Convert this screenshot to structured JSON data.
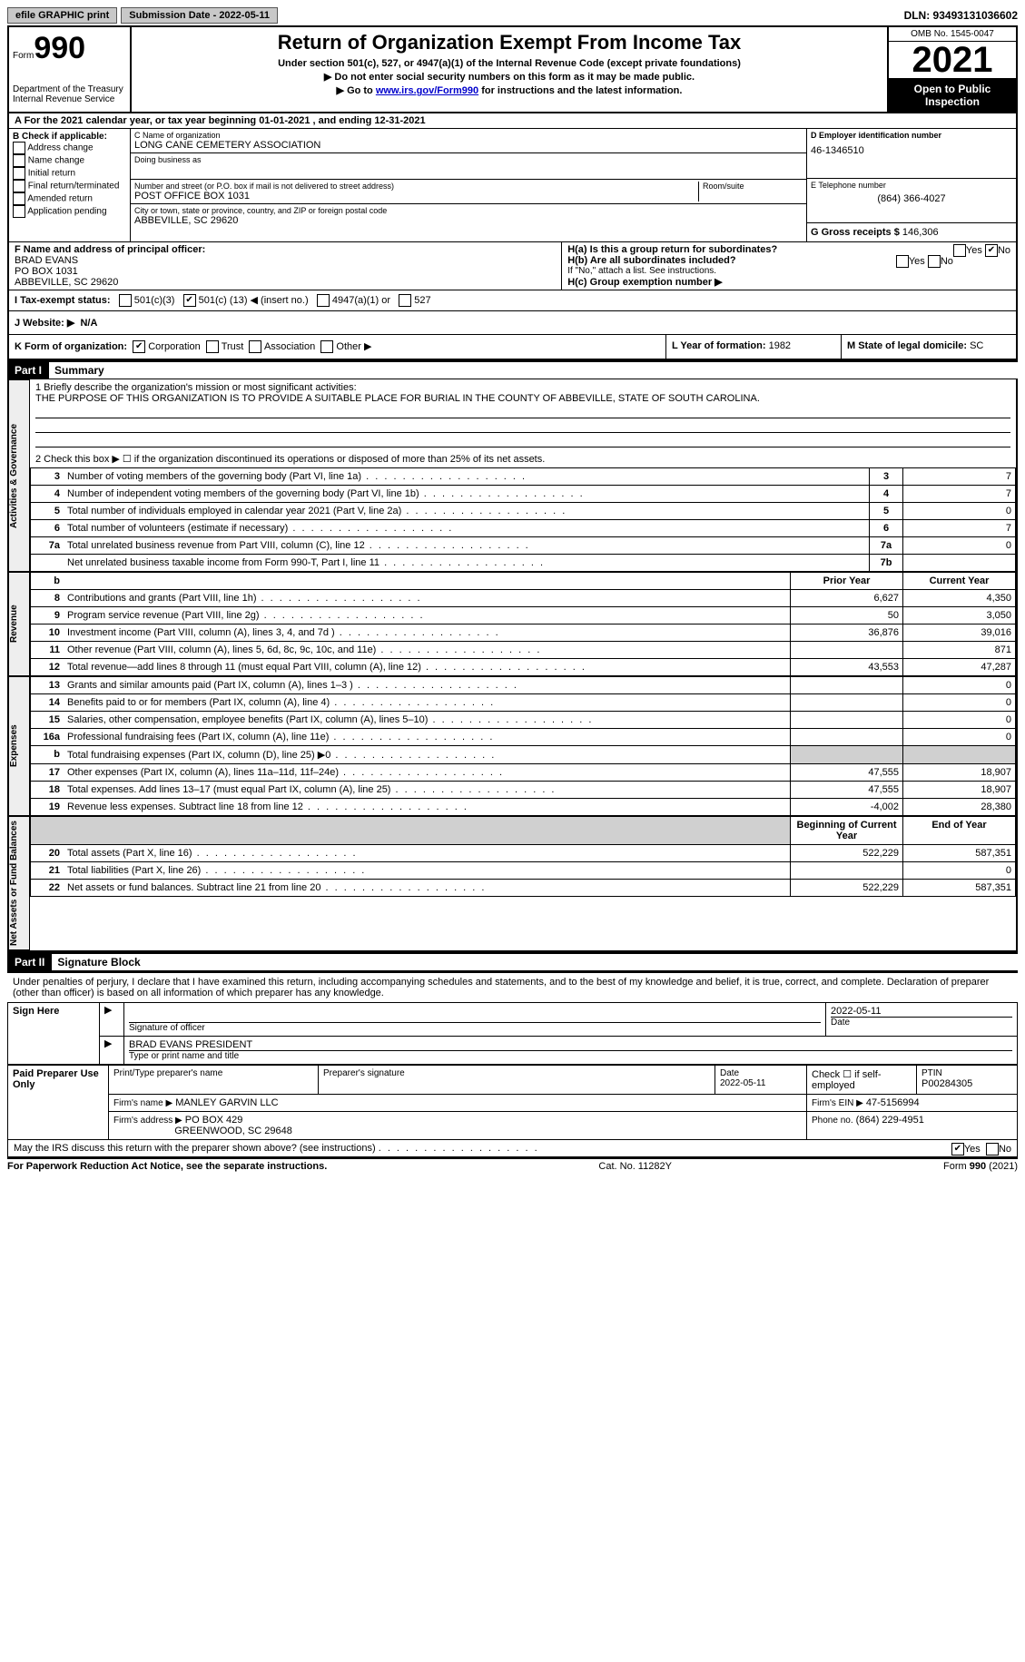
{
  "topbar": {
    "efile": "efile GRAPHIC print",
    "submission_label": "Submission Date - 2022-05-11",
    "dln": "DLN: 93493131036602"
  },
  "header": {
    "form_word": "Form",
    "form_num": "990",
    "dept": "Department of the Treasury",
    "irs": "Internal Revenue Service",
    "title": "Return of Organization Exempt From Income Tax",
    "sub": "Under section 501(c), 527, or 4947(a)(1) of the Internal Revenue Code (except private foundations)",
    "note1": "▶ Do not enter social security numbers on this form as it may be made public.",
    "note2_pre": "▶ Go to ",
    "note2_link": "www.irs.gov/Form990",
    "note2_post": " for instructions and the latest information.",
    "omb": "OMB No. 1545-0047",
    "year": "2021",
    "open": "Open to Public Inspection"
  },
  "line_a": "A For the 2021 calendar year, or tax year beginning 01-01-2021    , and ending 12-31-2021",
  "col_b": {
    "label": "B Check if applicable:",
    "items": [
      "Address change",
      "Name change",
      "Initial return",
      "Final return/terminated",
      "Amended return",
      "Application pending"
    ]
  },
  "col_c": {
    "name_lbl": "C Name of organization",
    "name": "LONG CANE CEMETERY ASSOCIATION",
    "dba_lbl": "Doing business as",
    "dba": "",
    "street_lbl": "Number and street (or P.O. box if mail is not delivered to street address)",
    "street": "POST OFFICE BOX 1031",
    "room_lbl": "Room/suite",
    "city_lbl": "City or town, state or province, country, and ZIP or foreign postal code",
    "city": "ABBEVILLE, SC  29620"
  },
  "col_d": {
    "ein_lbl": "D Employer identification number",
    "ein": "46-1346510",
    "phone_lbl": "E Telephone number",
    "phone": "(864) 366-4027",
    "gross_lbl": "G Gross receipts $",
    "gross": "146,306"
  },
  "section_f": {
    "lbl": "F Name and address of principal officer:",
    "name": "BRAD EVANS",
    "addr1": "PO BOX 1031",
    "addr2": "ABBEVILLE, SC  29620"
  },
  "section_h": {
    "ha": "H(a)  Is this a group return for subordinates?",
    "ha_yes": "Yes",
    "ha_no": "No",
    "hb": "H(b)  Are all subordinates included?",
    "hb_note": "If \"No,\" attach a list. See instructions.",
    "hc": "H(c)  Group exemption number ▶"
  },
  "status": {
    "lbl": "I   Tax-exempt status:",
    "c3": "501(c)(3)",
    "c_pre": "501(c) (",
    "c_num": "13",
    "c_post": ") ◀ (insert no.)",
    "a1": "4947(a)(1) or",
    "s527": "527"
  },
  "website": {
    "lbl": "J   Website: ▶",
    "val": "N/A"
  },
  "k_row": {
    "lbl": "K Form of organization:",
    "corp": "Corporation",
    "trust": "Trust",
    "assoc": "Association",
    "other": "Other ▶",
    "l_lbl": "L Year of formation:",
    "l_val": "1982",
    "m_lbl": "M State of legal domicile:",
    "m_val": "SC"
  },
  "part1": {
    "hdr": "Part I",
    "title": "Summary",
    "q1_lbl": "1   Briefly describe the organization's mission or most significant activities:",
    "q1_val": "THE PURPOSE OF THIS ORGANIZATION IS TO PROVIDE A SUITABLE PLACE FOR BURIAL IN THE COUNTY OF ABBEVILLE, STATE OF SOUTH CAROLINA.",
    "q2": "2   Check this box ▶ ☐ if the organization discontinued its operations or disposed of more than 25% of its net assets.",
    "sideA": "Activities & Governance",
    "sideR": "Revenue",
    "sideE": "Expenses",
    "sideN": "Net Assets or Fund Balances",
    "rows_ag": [
      {
        "n": "3",
        "d": "Number of voting members of the governing body (Part VI, line 1a)",
        "box": "3",
        "v": "7"
      },
      {
        "n": "4",
        "d": "Number of independent voting members of the governing body (Part VI, line 1b)",
        "box": "4",
        "v": "7"
      },
      {
        "n": "5",
        "d": "Total number of individuals employed in calendar year 2021 (Part V, line 2a)",
        "box": "5",
        "v": "0"
      },
      {
        "n": "6",
        "d": "Total number of volunteers (estimate if necessary)",
        "box": "6",
        "v": "7"
      },
      {
        "n": "7a",
        "d": "Total unrelated business revenue from Part VIII, column (C), line 12",
        "box": "7a",
        "v": "0"
      },
      {
        "n": "",
        "d": "Net unrelated business taxable income from Form 990-T, Part I, line 11",
        "box": "7b",
        "v": ""
      }
    ],
    "col_hdr_prior": "Prior Year",
    "col_hdr_current": "Current Year",
    "rows_rev": [
      {
        "n": "8",
        "d": "Contributions and grants (Part VIII, line 1h)",
        "p": "6,627",
        "c": "4,350"
      },
      {
        "n": "9",
        "d": "Program service revenue (Part VIII, line 2g)",
        "p": "50",
        "c": "3,050"
      },
      {
        "n": "10",
        "d": "Investment income (Part VIII, column (A), lines 3, 4, and 7d )",
        "p": "36,876",
        "c": "39,016"
      },
      {
        "n": "11",
        "d": "Other revenue (Part VIII, column (A), lines 5, 6d, 8c, 9c, 10c, and 11e)",
        "p": "",
        "c": "871"
      },
      {
        "n": "12",
        "d": "Total revenue—add lines 8 through 11 (must equal Part VIII, column (A), line 12)",
        "p": "43,553",
        "c": "47,287"
      }
    ],
    "rows_exp": [
      {
        "n": "13",
        "d": "Grants and similar amounts paid (Part IX, column (A), lines 1–3 )",
        "p": "",
        "c": "0"
      },
      {
        "n": "14",
        "d": "Benefits paid to or for members (Part IX, column (A), line 4)",
        "p": "",
        "c": "0"
      },
      {
        "n": "15",
        "d": "Salaries, other compensation, employee benefits (Part IX, column (A), lines 5–10)",
        "p": "",
        "c": "0"
      },
      {
        "n": "16a",
        "d": "Professional fundraising fees (Part IX, column (A), line 11e)",
        "p": "",
        "c": "0"
      },
      {
        "n": "b",
        "d": "Total fundraising expenses (Part IX, column (D), line 25) ▶0",
        "p": "GREY",
        "c": "GREY"
      },
      {
        "n": "17",
        "d": "Other expenses (Part IX, column (A), lines 11a–11d, 11f–24e)",
        "p": "47,555",
        "c": "18,907"
      },
      {
        "n": "18",
        "d": "Total expenses. Add lines 13–17 (must equal Part IX, column (A), line 25)",
        "p": "47,555",
        "c": "18,907"
      },
      {
        "n": "19",
        "d": "Revenue less expenses. Subtract line 18 from line 12",
        "p": "-4,002",
        "c": "28,380"
      }
    ],
    "col_hdr_beg": "Beginning of Current Year",
    "col_hdr_end": "End of Year",
    "rows_net": [
      {
        "n": "20",
        "d": "Total assets (Part X, line 16)",
        "p": "522,229",
        "c": "587,351"
      },
      {
        "n": "21",
        "d": "Total liabilities (Part X, line 26)",
        "p": "",
        "c": "0"
      },
      {
        "n": "22",
        "d": "Net assets or fund balances. Subtract line 21 from line 20",
        "p": "522,229",
        "c": "587,351"
      }
    ]
  },
  "part2": {
    "hdr": "Part II",
    "title": "Signature Block",
    "decl": "Under penalties of perjury, I declare that I have examined this return, including accompanying schedules and statements, and to the best of my knowledge and belief, it is true, correct, and complete. Declaration of preparer (other than officer) is based on all information of which preparer has any knowledge.",
    "sign_here": "Sign Here",
    "sig_officer": "Signature of officer",
    "sig_date": "2022-05-11",
    "date_lbl": "Date",
    "officer_name": "BRAD EVANS  PRESIDENT",
    "type_name_lbl": "Type or print name and title",
    "paid": "Paid Preparer Use Only",
    "prep_name_lbl": "Print/Type preparer's name",
    "prep_sig_lbl": "Preparer's signature",
    "prep_date_lbl": "Date",
    "prep_date": "2022-05-11",
    "check_self": "Check ☐ if self-employed",
    "ptin_lbl": "PTIN",
    "ptin": "P00284305",
    "firm_name_lbl": "Firm's name    ▶",
    "firm_name": "MANLEY GARVIN LLC",
    "firm_ein_lbl": "Firm's EIN ▶",
    "firm_ein": "47-5156994",
    "firm_addr_lbl": "Firm's address ▶",
    "firm_addr1": "PO BOX 429",
    "firm_addr2": "GREENWOOD, SC  29648",
    "firm_phone_lbl": "Phone no.",
    "firm_phone": "(864) 229-4951",
    "discuss": "May the IRS discuss this return with the preparer shown above? (see instructions)",
    "discuss_yes": "Yes",
    "discuss_no": "No"
  },
  "footer": {
    "pra": "For Paperwork Reduction Act Notice, see the separate instructions.",
    "cat": "Cat. No. 11282Y",
    "form": "Form 990 (2021)"
  }
}
